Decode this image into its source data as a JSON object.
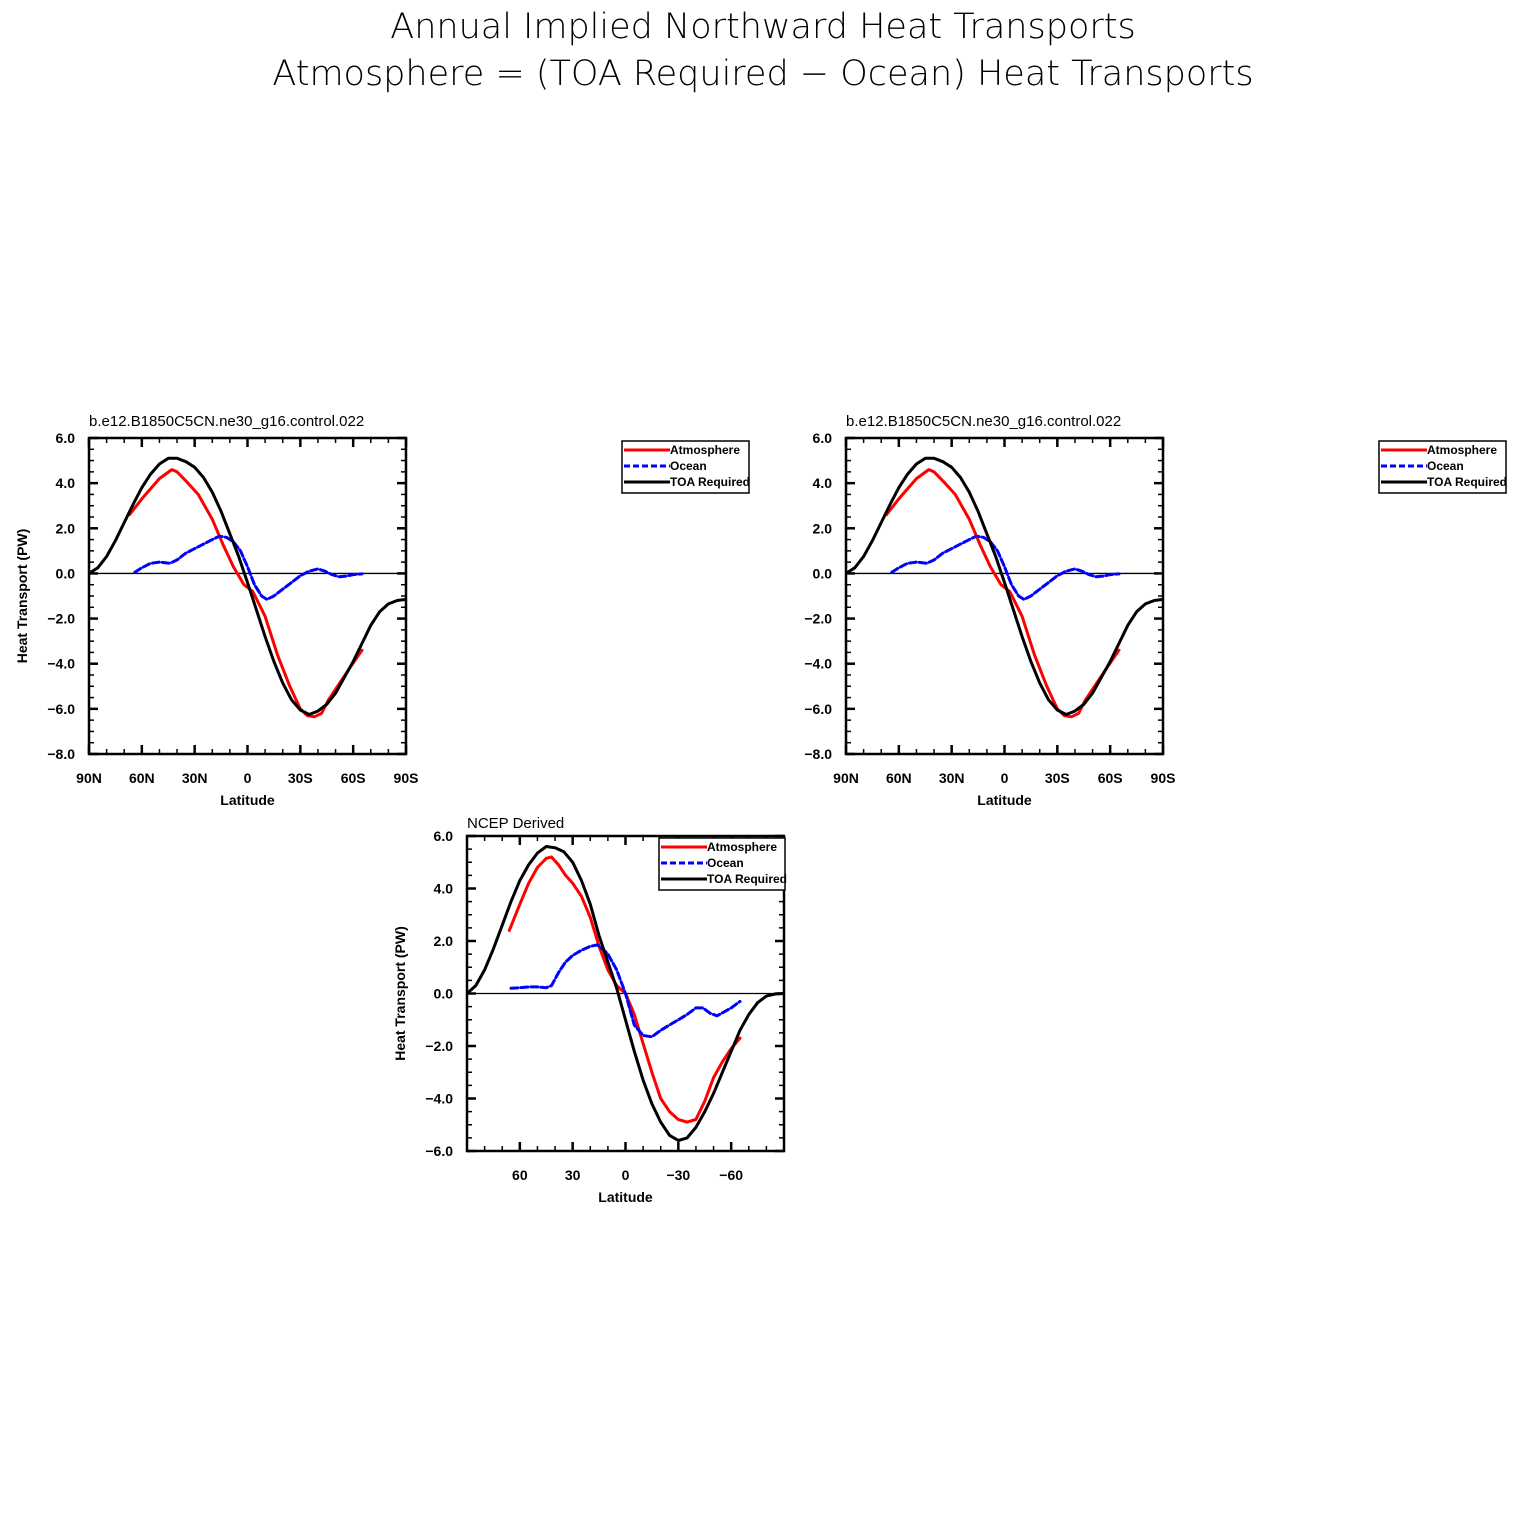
{
  "figure": {
    "title_line1": "Annual Implied Northward Heat Transports",
    "title_line2": "Atmosphere = (TOA Required − Ocean) Heat Transports"
  },
  "chart_data": [
    {
      "type": "line",
      "title": "b.e12.B1850C5CN.ne30_g16.control.022",
      "xlabel": "Latitude",
      "ylabel": "Heat Transport (PW)",
      "xlim": [
        90,
        -90
      ],
      "ylim": [
        -8,
        6
      ],
      "x_ticks": [
        90,
        60,
        30,
        0,
        -30,
        -60,
        -90
      ],
      "x_tick_labels": [
        "90N",
        "60N",
        "30N",
        "0",
        "30S",
        "60S",
        "90S"
      ],
      "y_ticks": [
        6,
        4,
        2,
        0,
        -2,
        -4,
        -6,
        -8
      ],
      "y_tick_labels": [
        "6.0",
        "4.0",
        "2.0",
        "0.0",
        "−2.0",
        "−4.0",
        "−6.0",
        "−8.0"
      ],
      "zero_line": true,
      "legend": {
        "position": "outside-right",
        "entries": [
          "Atmosphere",
          "Ocean",
          "TOA Required"
        ]
      },
      "series": [
        {
          "name": "Atmosphere",
          "color": "#ff0000",
          "dash": "solid",
          "x": [
            67,
            60,
            50,
            43,
            40,
            35,
            28,
            20,
            14,
            8,
            2,
            -3,
            -10,
            -17,
            -24,
            -30,
            -34,
            -38,
            -42,
            -46,
            -52,
            -58,
            -65
          ],
          "y": [
            2.6,
            3.3,
            4.2,
            4.6,
            4.5,
            4.1,
            3.5,
            2.4,
            1.3,
            0.3,
            -0.5,
            -0.8,
            -1.9,
            -3.6,
            -5.0,
            -6.0,
            -6.3,
            -6.35,
            -6.2,
            -5.6,
            -4.9,
            -4.2,
            -3.4
          ]
        },
        {
          "name": "Ocean",
          "color": "#0000ff",
          "dash": "dashed",
          "x": [
            64,
            60,
            55,
            50,
            44,
            40,
            35,
            30,
            25,
            20,
            16,
            12,
            8,
            4,
            0,
            -4,
            -8,
            -11,
            -15,
            -20,
            -25,
            -30,
            -35,
            -40,
            -44,
            -48,
            -52,
            -56,
            -60,
            -65
          ],
          "y": [
            0.05,
            0.25,
            0.45,
            0.5,
            0.45,
            0.6,
            0.9,
            1.1,
            1.3,
            1.5,
            1.65,
            1.6,
            1.4,
            1.0,
            0.3,
            -0.5,
            -1.0,
            -1.15,
            -1.0,
            -0.7,
            -0.4,
            -0.1,
            0.1,
            0.2,
            0.1,
            -0.05,
            -0.15,
            -0.12,
            -0.05,
            -0.02
          ]
        },
        {
          "name": "TOA Required",
          "color": "#000000",
          "dash": "solid",
          "x": [
            90,
            85,
            80,
            75,
            70,
            65,
            60,
            55,
            50,
            45,
            40,
            35,
            30,
            25,
            20,
            15,
            10,
            5,
            0,
            -5,
            -10,
            -15,
            -20,
            -25,
            -30,
            -35,
            -40,
            -45,
            -50,
            -55,
            -60,
            -65,
            -70,
            -75,
            -80,
            -85,
            -90
          ],
          "y": [
            0.0,
            0.25,
            0.75,
            1.45,
            2.25,
            3.05,
            3.8,
            4.4,
            4.85,
            5.1,
            5.1,
            4.95,
            4.7,
            4.25,
            3.6,
            2.75,
            1.75,
            0.75,
            -0.4,
            -1.6,
            -2.8,
            -3.9,
            -4.85,
            -5.6,
            -6.05,
            -6.25,
            -6.1,
            -5.8,
            -5.3,
            -4.6,
            -3.9,
            -3.1,
            -2.3,
            -1.7,
            -1.35,
            -1.2,
            -1.15
          ]
        }
      ]
    },
    {
      "type": "line",
      "title": "b.e12.B1850C5CN.ne30_g16.control.022",
      "xlabel": "Latitude",
      "ylabel": "",
      "xlim": [
        90,
        -90
      ],
      "ylim": [
        -8,
        6
      ],
      "x_ticks": [
        90,
        60,
        30,
        0,
        -30,
        -60,
        -90
      ],
      "x_tick_labels": [
        "90N",
        "60N",
        "30N",
        "0",
        "30S",
        "60S",
        "90S"
      ],
      "y_ticks": [
        6,
        4,
        2,
        0,
        -2,
        -4,
        -6,
        -8
      ],
      "y_tick_labels": [
        "6.0",
        "4.0",
        "2.0",
        "0.0",
        "−2.0",
        "−4.0",
        "−6.0",
        "−8.0"
      ],
      "zero_line": true,
      "legend": {
        "position": "outside-right",
        "entries": [
          "Atmosphere",
          "Ocean",
          "TOA Required"
        ]
      },
      "series": [
        {
          "name": "Atmosphere",
          "color": "#ff0000",
          "dash": "solid",
          "x": [
            67,
            60,
            50,
            43,
            40,
            35,
            28,
            20,
            14,
            8,
            2,
            -3,
            -10,
            -17,
            -24,
            -30,
            -34,
            -38,
            -42,
            -46,
            -52,
            -58,
            -65
          ],
          "y": [
            2.6,
            3.3,
            4.2,
            4.6,
            4.5,
            4.1,
            3.5,
            2.4,
            1.3,
            0.3,
            -0.5,
            -0.8,
            -1.9,
            -3.6,
            -5.0,
            -6.0,
            -6.3,
            -6.35,
            -6.2,
            -5.6,
            -4.9,
            -4.2,
            -3.4
          ]
        },
        {
          "name": "Ocean",
          "color": "#0000ff",
          "dash": "dashed",
          "x": [
            64,
            60,
            55,
            50,
            44,
            40,
            35,
            30,
            25,
            20,
            16,
            12,
            8,
            4,
            0,
            -4,
            -8,
            -11,
            -15,
            -20,
            -25,
            -30,
            -35,
            -40,
            -44,
            -48,
            -52,
            -56,
            -60,
            -65
          ],
          "y": [
            0.05,
            0.25,
            0.45,
            0.5,
            0.45,
            0.6,
            0.9,
            1.1,
            1.3,
            1.5,
            1.65,
            1.6,
            1.4,
            1.0,
            0.3,
            -0.5,
            -1.0,
            -1.15,
            -1.0,
            -0.7,
            -0.4,
            -0.1,
            0.1,
            0.2,
            0.1,
            -0.05,
            -0.15,
            -0.12,
            -0.05,
            -0.02
          ]
        },
        {
          "name": "TOA Required",
          "color": "#000000",
          "dash": "solid",
          "x": [
            90,
            85,
            80,
            75,
            70,
            65,
            60,
            55,
            50,
            45,
            40,
            35,
            30,
            25,
            20,
            15,
            10,
            5,
            0,
            -5,
            -10,
            -15,
            -20,
            -25,
            -30,
            -35,
            -40,
            -45,
            -50,
            -55,
            -60,
            -65,
            -70,
            -75,
            -80,
            -85,
            -90
          ],
          "y": [
            0.0,
            0.25,
            0.75,
            1.45,
            2.25,
            3.05,
            3.8,
            4.4,
            4.85,
            5.1,
            5.1,
            4.95,
            4.7,
            4.25,
            3.6,
            2.75,
            1.75,
            0.75,
            -0.4,
            -1.6,
            -2.8,
            -3.9,
            -4.85,
            -5.6,
            -6.05,
            -6.25,
            -6.1,
            -5.8,
            -5.3,
            -4.6,
            -3.9,
            -3.1,
            -2.3,
            -1.7,
            -1.35,
            -1.2,
            -1.15
          ]
        }
      ]
    },
    {
      "type": "line",
      "title": "NCEP Derived",
      "xlabel": "Latitude",
      "ylabel": "Heat Transport (PW)",
      "xlim": [
        90,
        -90
      ],
      "ylim": [
        -6,
        6
      ],
      "x_ticks": [
        60,
        30,
        0,
        -30,
        -60
      ],
      "x_tick_labels": [
        "60",
        "30",
        "0",
        "−30",
        "−60"
      ],
      "y_ticks": [
        6,
        4,
        2,
        0,
        -2,
        -4,
        -6
      ],
      "y_tick_labels": [
        "6.0",
        "4.0",
        "2.0",
        "0.0",
        "−2.0",
        "−4.0",
        "−6.0"
      ],
      "zero_line": true,
      "legend": {
        "position": "top-right",
        "entries": [
          "Atmosphere",
          "Ocean",
          "TOA Required"
        ]
      },
      "series": [
        {
          "name": "Atmosphere",
          "color": "#ff0000",
          "dash": "solid",
          "x": [
            66,
            60,
            55,
            50,
            45,
            42,
            38,
            34,
            30,
            25,
            20,
            15,
            10,
            5,
            0,
            -5,
            -10,
            -15,
            -20,
            -25,
            -30,
            -35,
            -40,
            -45,
            -50,
            -55,
            -60,
            -65
          ],
          "y": [
            2.4,
            3.4,
            4.2,
            4.8,
            5.15,
            5.2,
            4.9,
            4.5,
            4.2,
            3.7,
            2.9,
            1.8,
            0.9,
            0.3,
            0.0,
            -0.8,
            -1.9,
            -3.0,
            -4.0,
            -4.5,
            -4.8,
            -4.9,
            -4.8,
            -4.1,
            -3.2,
            -2.6,
            -2.1,
            -1.7
          ]
        },
        {
          "name": "Ocean",
          "color": "#0000ff",
          "dash": "dashed",
          "x": [
            65,
            60,
            55,
            50,
            45,
            42,
            38,
            34,
            30,
            25,
            20,
            16,
            13,
            10,
            5,
            0,
            -5,
            -10,
            -15,
            -20,
            -25,
            -30,
            -35,
            -40,
            -44,
            -48,
            -52,
            -56,
            -60,
            -65
          ],
          "y": [
            0.2,
            0.22,
            0.25,
            0.25,
            0.22,
            0.3,
            0.8,
            1.2,
            1.45,
            1.65,
            1.8,
            1.85,
            1.7,
            1.5,
            0.9,
            0.0,
            -1.2,
            -1.6,
            -1.65,
            -1.4,
            -1.2,
            -1.0,
            -0.8,
            -0.55,
            -0.55,
            -0.75,
            -0.85,
            -0.7,
            -0.55,
            -0.3
          ]
        },
        {
          "name": "TOA Required",
          "color": "#000000",
          "dash": "solid",
          "x": [
            90,
            85,
            80,
            75,
            70,
            65,
            60,
            55,
            50,
            45,
            40,
            35,
            30,
            25,
            20,
            15,
            10,
            5,
            0,
            -5,
            -10,
            -15,
            -20,
            -25,
            -30,
            -35,
            -40,
            -45,
            -50,
            -55,
            -60,
            -65,
            -70,
            -75,
            -80,
            -85,
            -90
          ],
          "y": [
            0.0,
            0.3,
            0.9,
            1.7,
            2.6,
            3.5,
            4.3,
            4.9,
            5.35,
            5.6,
            5.55,
            5.4,
            5.0,
            4.3,
            3.4,
            2.2,
            1.2,
            0.2,
            -1.0,
            -2.2,
            -3.3,
            -4.2,
            -4.9,
            -5.4,
            -5.6,
            -5.5,
            -5.1,
            -4.5,
            -3.8,
            -3.0,
            -2.2,
            -1.4,
            -0.8,
            -0.35,
            -0.1,
            -0.02,
            0.0
          ]
        }
      ]
    }
  ]
}
